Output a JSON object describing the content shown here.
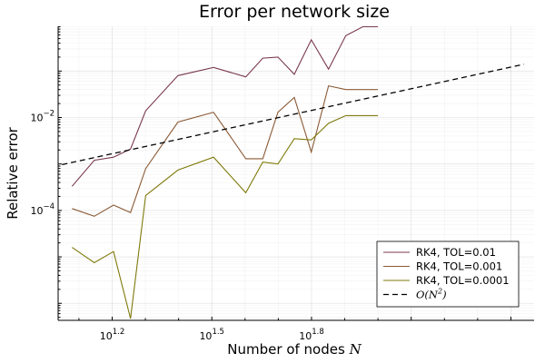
{
  "chart_data": {
    "type": "line",
    "title": "Error per network size",
    "xlabel": "Number of nodes",
    "xlabel_symbol": "N",
    "ylabel": "Relative error",
    "x_scale": "log10",
    "y_scale": "log10",
    "xlim": [
      10.9,
      295
    ],
    "ylim": [
      4.3e-07,
      0.92
    ],
    "xticks": [
      {
        "value": 15.85,
        "base": "10",
        "exp": "1.2"
      },
      {
        "value": 31.62,
        "base": "10",
        "exp": "1.5"
      },
      {
        "value": 63.1,
        "base": "10",
        "exp": "1.8"
      }
    ],
    "yticks": [
      {
        "value": 0.0001,
        "base": "10",
        "exp": "−4"
      },
      {
        "value": 0.01,
        "base": "10",
        "exp": "−2"
      }
    ],
    "grid": true,
    "legend_position": "bottom-right",
    "x": [
      12,
      14,
      16,
      18,
      20,
      25,
      32,
      40,
      45,
      50,
      56,
      63,
      71,
      80,
      90,
      100
    ],
    "series": [
      {
        "name": "RK4, TOL=0.01",
        "color": "#7a3a4f",
        "style": "solid",
        "values": [
          0.00033,
          0.0012,
          0.0014,
          0.0021,
          0.014,
          0.08,
          0.12,
          0.075,
          0.19,
          0.2,
          0.085,
          0.47,
          0.11,
          0.58,
          0.9,
          0.9
        ]
      },
      {
        "name": "RK4, TOL=0.001",
        "color": "#8b5a36",
        "style": "solid",
        "values": [
          0.00011,
          7.5e-05,
          0.00013,
          9e-05,
          0.0008,
          0.008,
          0.013,
          0.0013,
          0.0013,
          0.013,
          0.027,
          0.0018,
          0.048,
          0.04,
          0.04,
          0.04
        ]
      },
      {
        "name": "RK4, TOL=0.0001",
        "color": "#7f7a0c",
        "style": "solid",
        "values": [
          1.6e-05,
          7.5e-06,
          1.3e-05,
          4.7e-07,
          0.00021,
          0.00074,
          0.0014,
          0.00024,
          0.0011,
          0.001,
          0.0035,
          0.0033,
          0.0075,
          0.011,
          0.011,
          0.011
        ]
      },
      {
        "name": "O(N^2)",
        "name_base": "O(N",
        "name_exp": "2",
        "name_close": ")",
        "color": "#000000",
        "style": "dashed",
        "x": [
          11.2,
          275
        ],
        "values": [
          0.00097,
          0.14
        ]
      }
    ]
  }
}
